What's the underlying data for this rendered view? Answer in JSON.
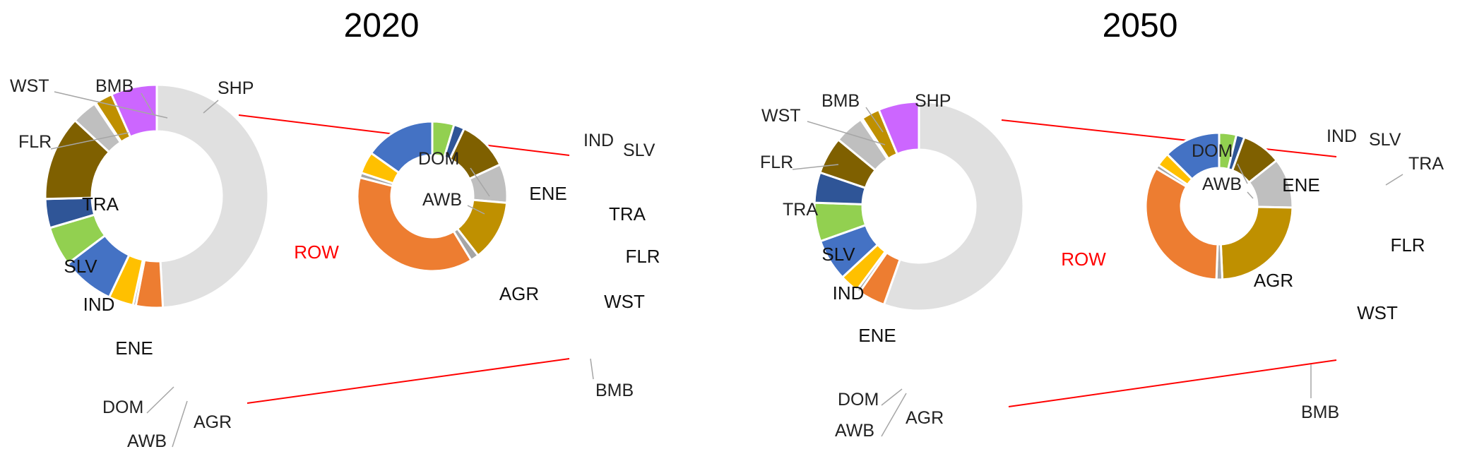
{
  "chart_data": [
    {
      "type": "pie",
      "title": "2020",
      "outer": [
        {
          "label": "ROW",
          "value": 48.0
        },
        {
          "label": "AGR",
          "value": 3.8
        },
        {
          "label": "AWB",
          "value": 0.4
        },
        {
          "label": "DOM",
          "value": 3.5
        },
        {
          "label": "ENE",
          "value": 7.5
        },
        {
          "label": "IND",
          "value": 5.6
        },
        {
          "label": "SLV",
          "value": 4.1
        },
        {
          "label": "TRA",
          "value": 12.0
        },
        {
          "label": "FLR",
          "value": 3.6
        },
        {
          "label": "WST",
          "value": 0.2
        },
        {
          "label": "BMB",
          "value": 2.5
        },
        {
          "label": "SHP",
          "value": 6.5
        }
      ],
      "inner": [
        {
          "label": "IND",
          "value": 4.5
        },
        {
          "label": "SLV",
          "value": 2.2
        },
        {
          "label": "TRA",
          "value": 10.5
        },
        {
          "label": "FLR",
          "value": 8.0
        },
        {
          "label": "WST",
          "value": 12.5
        },
        {
          "label": "BMB",
          "value": 1.7
        },
        {
          "label": "AGR",
          "value": 36.0
        },
        {
          "label": "AWB",
          "value": 1.0
        },
        {
          "label": "DOM",
          "value": 4.5
        },
        {
          "label": "ENE",
          "value": 14.5
        }
      ]
    },
    {
      "type": "pie",
      "title": "2050",
      "outer": [
        {
          "label": "ROW",
          "value": 53.0
        },
        {
          "label": "AGR",
          "value": 4.0
        },
        {
          "label": "AWB",
          "value": 0.5
        },
        {
          "label": "DOM",
          "value": 2.8
        },
        {
          "label": "ENE",
          "value": 6.2
        },
        {
          "label": "IND",
          "value": 5.7
        },
        {
          "label": "SLV",
          "value": 4.5
        },
        {
          "label": "TRA",
          "value": 5.5
        },
        {
          "label": "FLR",
          "value": 4.4
        },
        {
          "label": "WST",
          "value": 0.3
        },
        {
          "label": "BMB",
          "value": 2.7
        },
        {
          "label": "SHP",
          "value": 6.0
        }
      ],
      "inner": [
        {
          "label": "IND",
          "value": 3.8
        },
        {
          "label": "SLV",
          "value": 1.8
        },
        {
          "label": "TRA",
          "value": 8.7
        },
        {
          "label": "FLR",
          "value": 11.0
        },
        {
          "label": "WST",
          "value": 24.0
        },
        {
          "label": "BMB",
          "value": 1.3
        },
        {
          "label": "AGR",
          "value": 33.0
        },
        {
          "label": "AWB",
          "value": 0.9
        },
        {
          "label": "DOM",
          "value": 3.0
        },
        {
          "label": "ENE",
          "value": 12.5
        }
      ]
    }
  ],
  "colors": {
    "ROW": "#e0e0e0",
    "AGR": "#ed7d31",
    "AWB": "#a5a5a5",
    "DOM": "#ffc000",
    "ENE": "#4472c4",
    "IND": "#92d050",
    "SLV": "#2f5597",
    "TRA": "#7f6000",
    "FLR": "#bfbfbf",
    "WST": "#bf9000",
    "BMB": "#bf9000",
    "SHP": "#cc66ff",
    "inner_BMB": "#a5a5a5",
    "connector": "#ff0000",
    "row_label": "#ff0000",
    "leader": "#a6a6a6"
  }
}
